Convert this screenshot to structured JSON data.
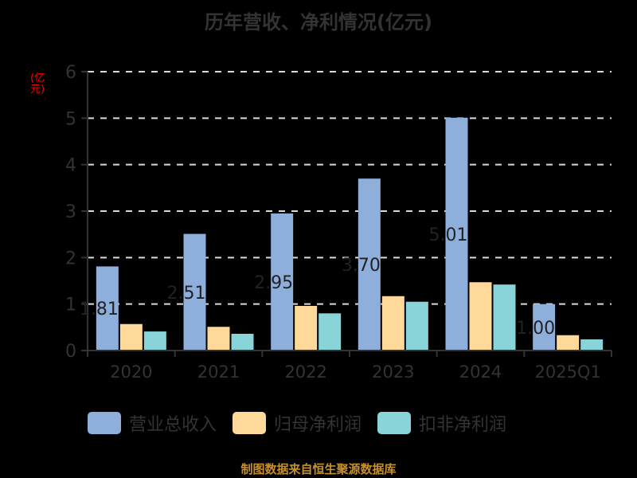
{
  "title": "历年营收、净利情况(亿元)",
  "unit_label": "(亿元)",
  "source": "制图数据来自恒生聚源数据库",
  "legend": [
    {
      "label": "营业总收入",
      "color": "#8eaedc"
    },
    {
      "label": "归母净利润",
      "color": "#ffd99a"
    },
    {
      "label": "扣非净利润",
      "color": "#88d4d8"
    }
  ],
  "chart_data": {
    "type": "bar",
    "title": "历年营收、净利情况(亿元)",
    "xlabel": "",
    "ylabel": "(亿元)",
    "ylim": [
      0,
      6
    ],
    "yticks": [
      0,
      1,
      2,
      3,
      4,
      5,
      6
    ],
    "grid": true,
    "legend_position": "bottom",
    "categories": [
      "2020",
      "2021",
      "2022",
      "2023",
      "2024",
      "2025Q1"
    ],
    "series": [
      {
        "name": "营业总收入",
        "color": "#8eaedc",
        "values": [
          1.81,
          2.51,
          2.95,
          3.7,
          5.01,
          1.0
        ],
        "data_labels": [
          "1.81",
          "2.51",
          "2.95",
          "3.70",
          "5.01",
          "1.00"
        ]
      },
      {
        "name": "归母净利润",
        "color": "#ffd99a",
        "values": [
          0.57,
          0.51,
          0.96,
          1.17,
          1.47,
          0.33
        ]
      },
      {
        "name": "扣非净利润",
        "color": "#88d4d8",
        "values": [
          0.41,
          0.36,
          0.8,
          1.05,
          1.42,
          0.24
        ]
      }
    ]
  }
}
